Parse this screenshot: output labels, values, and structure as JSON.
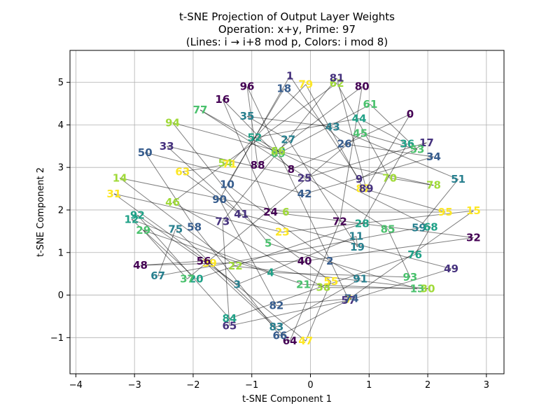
{
  "chart_data": {
    "type": "scatter",
    "title_lines": [
      "t-SNE Projection of Output Layer Weights",
      "Operation: x+y, Prime: 97",
      "(Lines: i → i+8 mod p, Colors: i mod 8)"
    ],
    "xlabel": "t-SNE Component 1",
    "ylabel": "t-SNE Component 2",
    "xlim": [
      -4.1,
      3.3
    ],
    "ylim": [
      -1.85,
      5.75
    ],
    "xticks": [
      -4,
      -3,
      -2,
      -1,
      0,
      1,
      2,
      3
    ],
    "yticks": [
      -1,
      0,
      1,
      2,
      3,
      4,
      5
    ],
    "xtick_labels": [
      "−4",
      "−3",
      "−2",
      "−1",
      "0",
      "1",
      "2",
      "3"
    ],
    "ytick_labels": [
      "−1",
      "0",
      "1",
      "2",
      "3",
      "4",
      "5"
    ],
    "grid": true,
    "line_step": 8,
    "modulus": 97,
    "color_groups": {
      "0": "#440154",
      "1": "#46327e",
      "2": "#365c8d",
      "3": "#277f8e",
      "4": "#1fa187",
      "5": "#4ac16d",
      "6": "#a0da39",
      "7": "#fde725"
    },
    "points": [
      {
        "label": "0",
        "x": 1.7,
        "y": 4.25
      },
      {
        "label": "1",
        "x": -0.35,
        "y": 5.15
      },
      {
        "label": "2",
        "x": 0.33,
        "y": 0.8
      },
      {
        "label": "3",
        "x": -1.25,
        "y": 0.25
      },
      {
        "label": "4",
        "x": -0.68,
        "y": 0.53
      },
      {
        "label": "5",
        "x": -0.72,
        "y": 1.22
      },
      {
        "label": "6",
        "x": -0.42,
        "y": 1.95
      },
      {
        "label": "7",
        "x": 0.65,
        "y": -0.1
      },
      {
        "label": "8",
        "x": -0.33,
        "y": 2.95
      },
      {
        "label": "9",
        "x": 0.83,
        "y": 2.72
      },
      {
        "label": "10",
        "x": -1.42,
        "y": 2.6
      },
      {
        "label": "11",
        "x": 0.78,
        "y": 1.38
      },
      {
        "label": "12",
        "x": -3.05,
        "y": 1.78
      },
      {
        "label": "13",
        "x": 1.82,
        "y": 0.15
      },
      {
        "label": "14",
        "x": -3.25,
        "y": 2.75
      },
      {
        "label": "15",
        "x": 2.78,
        "y": 1.98
      },
      {
        "label": "16",
        "x": -1.5,
        "y": 4.6
      },
      {
        "label": "17",
        "x": 1.98,
        "y": 3.58
      },
      {
        "label": "18",
        "x": -0.45,
        "y": 4.85
      },
      {
        "label": "19",
        "x": 0.8,
        "y": 1.13
      },
      {
        "label": "20",
        "x": -1.95,
        "y": 0.38
      },
      {
        "label": "21",
        "x": -0.12,
        "y": 0.25
      },
      {
        "label": "22",
        "x": -1.28,
        "y": 0.68
      },
      {
        "label": "23",
        "x": -0.48,
        "y": 1.48
      },
      {
        "label": "24",
        "x": -0.68,
        "y": 1.95
      },
      {
        "label": "25",
        "x": -0.1,
        "y": 2.75
      },
      {
        "label": "26",
        "x": 0.58,
        "y": 3.55
      },
      {
        "label": "27",
        "x": -0.38,
        "y": 3.65
      },
      {
        "label": "28",
        "x": 0.88,
        "y": 1.68
      },
      {
        "label": "29",
        "x": -2.85,
        "y": 1.52
      },
      {
        "label": "30",
        "x": 2.0,
        "y": 0.15
      },
      {
        "label": "31",
        "x": -3.35,
        "y": 2.38
      },
      {
        "label": "32",
        "x": 2.78,
        "y": 1.35
      },
      {
        "label": "33",
        "x": -2.45,
        "y": 3.5
      },
      {
        "label": "34",
        "x": 2.1,
        "y": 3.25
      },
      {
        "label": "35",
        "x": -1.08,
        "y": 4.2
      },
      {
        "label": "36",
        "x": 1.65,
        "y": 3.55
      },
      {
        "label": "37",
        "x": -2.1,
        "y": 0.38
      },
      {
        "label": "38",
        "x": 0.22,
        "y": 0.18
      },
      {
        "label": "39",
        "x": -1.72,
        "y": 0.75
      },
      {
        "label": "40",
        "x": -0.1,
        "y": 0.8
      },
      {
        "label": "41",
        "x": -1.18,
        "y": 1.9
      },
      {
        "label": "42",
        "x": -0.1,
        "y": 2.38
      },
      {
        "label": "43",
        "x": 0.38,
        "y": 3.95
      },
      {
        "label": "44",
        "x": 0.83,
        "y": 4.15
      },
      {
        "label": "45",
        "x": 0.85,
        "y": 3.8
      },
      {
        "label": "46",
        "x": -2.35,
        "y": 2.18
      },
      {
        "label": "47",
        "x": -0.08,
        "y": -1.08
      },
      {
        "label": "48",
        "x": -2.9,
        "y": 0.7
      },
      {
        "label": "49",
        "x": 2.4,
        "y": 0.62
      },
      {
        "label": "50",
        "x": -2.82,
        "y": 3.35
      },
      {
        "label": "51",
        "x": 2.52,
        "y": 2.72
      },
      {
        "label": "52",
        "x": -0.95,
        "y": 3.7
      },
      {
        "label": "53",
        "x": 1.82,
        "y": 3.42
      },
      {
        "label": "54",
        "x": -1.45,
        "y": 3.1
      },
      {
        "label": "55",
        "x": 0.35,
        "y": 0.32
      },
      {
        "label": "56",
        "x": -1.82,
        "y": 0.8
      },
      {
        "label": "57",
        "x": 0.65,
        "y": -0.12
      },
      {
        "label": "58",
        "x": -1.98,
        "y": 1.6
      },
      {
        "label": "59",
        "x": 1.85,
        "y": 1.58
      },
      {
        "label": "60",
        "x": -0.55,
        "y": 3.38
      },
      {
        "label": "61",
        "x": 1.02,
        "y": 4.48
      },
      {
        "label": "62",
        "x": 0.45,
        "y": 4.98
      },
      {
        "label": "63",
        "x": -2.18,
        "y": 2.9
      },
      {
        "label": "64",
        "x": -0.35,
        "y": -1.08
      },
      {
        "label": "65",
        "x": -1.38,
        "y": -0.72
      },
      {
        "label": "66",
        "x": -0.52,
        "y": -0.95
      },
      {
        "label": "67",
        "x": -2.6,
        "y": 0.45
      },
      {
        "label": "68",
        "x": 2.05,
        "y": 1.6
      },
      {
        "label": "69",
        "x": -0.55,
        "y": 3.32
      },
      {
        "label": "70",
        "x": 1.35,
        "y": 2.75
      },
      {
        "label": "71",
        "x": -1.38,
        "y": 3.08
      },
      {
        "label": "72",
        "x": 0.5,
        "y": 1.73
      },
      {
        "label": "73",
        "x": -1.5,
        "y": 1.73
      },
      {
        "label": "74",
        "x": 0.7,
        "y": -0.08
      },
      {
        "label": "75",
        "x": -2.3,
        "y": 1.55
      },
      {
        "label": "76",
        "x": 1.78,
        "y": 0.95
      },
      {
        "label": "77",
        "x": -1.88,
        "y": 4.35
      },
      {
        "label": "78",
        "x": 2.1,
        "y": 2.58
      },
      {
        "label": "79",
        "x": -0.08,
        "y": 4.95
      },
      {
        "label": "80",
        "x": 0.88,
        "y": 4.9
      },
      {
        "label": "81",
        "x": 0.45,
        "y": 5.1
      },
      {
        "label": "82",
        "x": -0.58,
        "y": -0.25
      },
      {
        "label": "83",
        "x": -0.58,
        "y": -0.75
      },
      {
        "label": "84",
        "x": -1.38,
        "y": -0.55
      },
      {
        "label": "85",
        "x": 1.32,
        "y": 1.55
      },
      {
        "label": "86",
        "x": -0.55,
        "y": 3.38
      },
      {
        "label": "87",
        "x": 0.9,
        "y": 2.5
      },
      {
        "label": "88",
        "x": -0.9,
        "y": 3.05
      },
      {
        "label": "89",
        "x": 0.95,
        "y": 2.5
      },
      {
        "label": "90",
        "x": -1.55,
        "y": 2.25
      },
      {
        "label": "91",
        "x": 0.85,
        "y": 0.38
      },
      {
        "label": "92",
        "x": -2.95,
        "y": 1.88
      },
      {
        "label": "93",
        "x": 1.7,
        "y": 0.42
      },
      {
        "label": "94",
        "x": -2.35,
        "y": 4.05
      },
      {
        "label": "95",
        "x": 2.3,
        "y": 1.95
      },
      {
        "label": "96",
        "x": -1.08,
        "y": 4.9
      }
    ]
  }
}
